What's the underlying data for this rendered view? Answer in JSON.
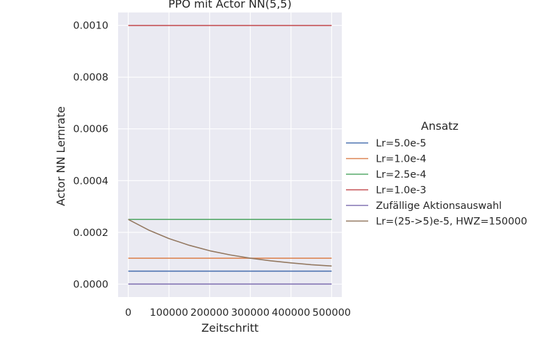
{
  "chart_data": {
    "type": "line",
    "title": "PPO mit Actor NN(5,5)",
    "xlabel": "Zeitschritt",
    "ylabel": "Actor NN Lernrate",
    "xlim": [
      -25000,
      525000
    ],
    "ylim": [
      -5e-05,
      0.00105
    ],
    "xticks": [
      0,
      100000,
      200000,
      300000,
      400000,
      500000
    ],
    "xtick_labels": [
      "0",
      "100000",
      "200000",
      "300000",
      "400000",
      "500000"
    ],
    "yticks": [
      0.0,
      0.0002,
      0.0004,
      0.0006,
      0.0008,
      0.001
    ],
    "ytick_labels": [
      "0.0000",
      "0.0002",
      "0.0004",
      "0.0006",
      "0.0008",
      "0.0010"
    ],
    "grid": true,
    "legend": {
      "title": "Ansatz",
      "placement": "right outside"
    },
    "series": [
      {
        "name": "Lr=5.0e-5",
        "color": "#4c72b0",
        "x": [
          0,
          500000
        ],
        "y": [
          5e-05,
          5e-05
        ]
      },
      {
        "name": "Lr=1.0e-4",
        "color": "#dd8452",
        "x": [
          0,
          500000
        ],
        "y": [
          0.0001,
          0.0001
        ]
      },
      {
        "name": "Lr=2.5e-4",
        "color": "#55a868",
        "x": [
          0,
          500000
        ],
        "y": [
          0.00025,
          0.00025
        ]
      },
      {
        "name": "Lr=1.0e-3",
        "color": "#c44e52",
        "x": [
          0,
          500000
        ],
        "y": [
          0.001,
          0.001
        ]
      },
      {
        "name": "Zufällige Aktionsauswahl",
        "color": "#8172b3",
        "x": [
          0,
          500000
        ],
        "y": [
          0.0,
          0.0
        ]
      },
      {
        "name": "Lr=(25->5)e-5, HWZ=150000",
        "color": "#937860",
        "x": [
          0,
          50000,
          100000,
          150000,
          200000,
          250000,
          300000,
          350000,
          400000,
          450000,
          500000
        ],
        "y": [
          0.00025,
          0.000209,
          0.000176,
          0.00015,
          0.000129,
          0.000113,
          0.0001,
          9e-05,
          8.2e-05,
          7.5e-05,
          7e-05
        ]
      }
    ]
  }
}
